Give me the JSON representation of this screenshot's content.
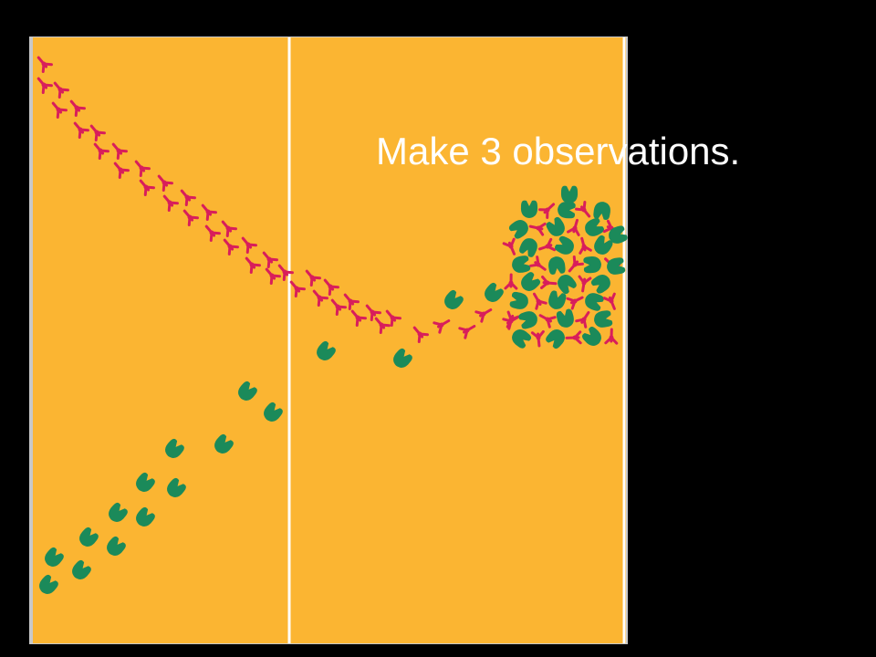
{
  "slide": {
    "text": "Make 3 observations."
  }
}
